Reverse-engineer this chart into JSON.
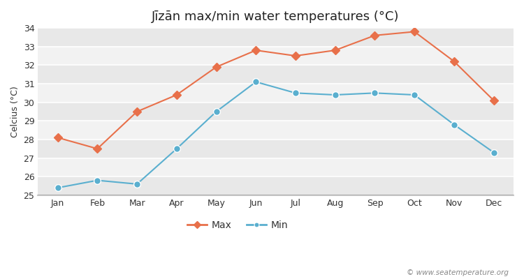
{
  "title": "Jīzān max/min water temperatures (°C)",
  "ylabel": "Celcius (°C)",
  "months": [
    "Jan",
    "Feb",
    "Mar",
    "Apr",
    "May",
    "Jun",
    "Jul",
    "Aug",
    "Sep",
    "Oct",
    "Nov",
    "Dec"
  ],
  "max_temps": [
    28.1,
    27.5,
    29.5,
    30.4,
    31.9,
    32.8,
    32.5,
    32.8,
    33.6,
    33.8,
    32.2,
    30.1
  ],
  "min_temps": [
    25.4,
    25.8,
    25.6,
    27.5,
    29.5,
    31.1,
    30.5,
    30.4,
    30.5,
    30.4,
    28.8,
    27.3
  ],
  "max_color": "#e8704a",
  "min_color": "#5aafcf",
  "figure_bg_color": "#ffffff",
  "plot_bg_color": "#f0f0f0",
  "stripe_color": "#e8e8e8",
  "grid_color": "#ffffff",
  "ylim": [
    25,
    34
  ],
  "yticks": [
    25,
    26,
    27,
    28,
    29,
    30,
    31,
    32,
    33,
    34
  ],
  "legend_labels": [
    "Max",
    "Min"
  ],
  "watermark": "© www.seatemperature.org",
  "title_fontsize": 13,
  "axis_label_fontsize": 9,
  "tick_fontsize": 9,
  "legend_fontsize": 10,
  "line_width": 1.5,
  "marker_size_max": 6,
  "marker_size_min": 7
}
